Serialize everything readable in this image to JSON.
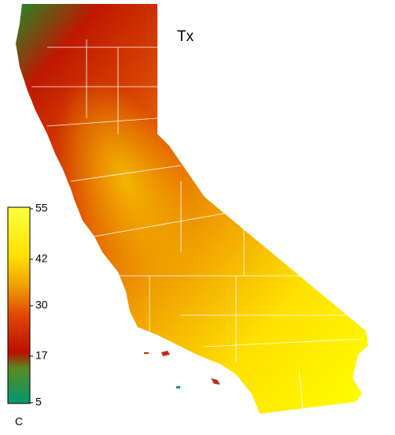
{
  "title": "Tx",
  "colorbar": {
    "label": "C",
    "lim": [
      5,
      55
    ],
    "ticks": [
      55,
      42,
      30,
      17,
      5
    ]
  }
}
